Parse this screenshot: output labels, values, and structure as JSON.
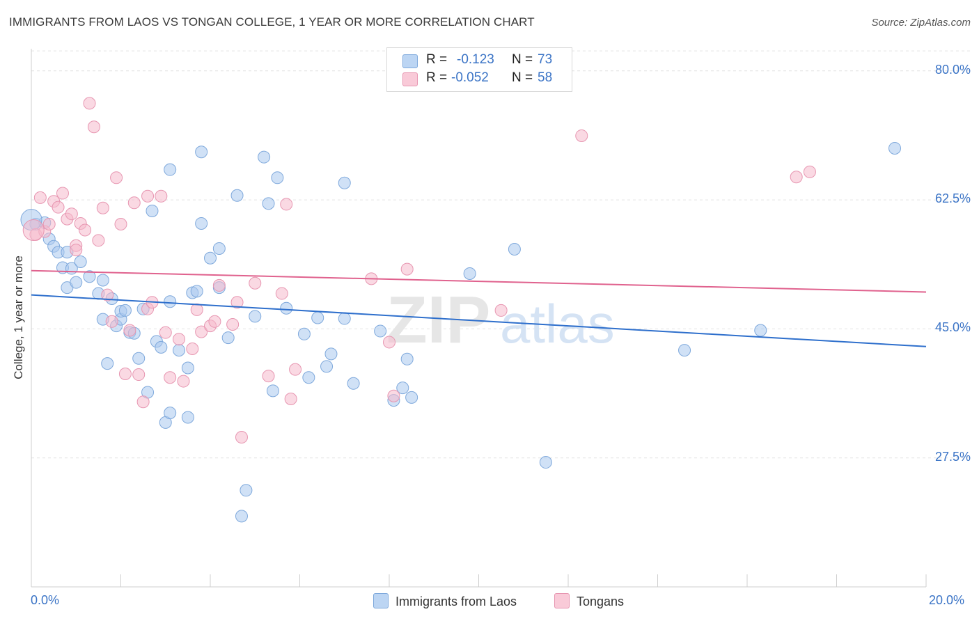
{
  "header": {
    "title": "IMMIGRANTS FROM LAOS VS TONGAN COLLEGE, 1 YEAR OR MORE CORRELATION CHART",
    "source": "Source: ZipAtlas.com"
  },
  "legend": {
    "r_label": "R =",
    "n_label": "N =",
    "rows": [
      {
        "r": "-0.123",
        "n": "73",
        "color": "#a9c8ef"
      },
      {
        "r": "-0.052",
        "n": "58",
        "color": "#f5b9cc"
      }
    ]
  },
  "bottom_legend": [
    "Immigrants from Laos",
    "Tongans"
  ],
  "watermark": {
    "zip": "ZIP",
    "atlas": "atlas"
  },
  "chart_data": {
    "type": "scatter",
    "xlabel": "",
    "ylabel": "College, 1 year or more",
    "xlim": [
      0,
      20
    ],
    "ylim": [
      10,
      83
    ],
    "x_ticks": [
      "0.0%",
      "20.0%"
    ],
    "y_ticks": [
      "80.0%",
      "62.5%",
      "45.0%",
      "27.5%"
    ],
    "y_tick_values": [
      80,
      62.5,
      45,
      27.5
    ],
    "grid": true,
    "legend_placement": "top-center",
    "series": [
      {
        "name": "Immigrants from Laos",
        "color": "#a9c8ef",
        "stroke": "#7fa9dc",
        "trend": {
          "x": [
            0,
            20
          ],
          "y": [
            49.6,
            42.6
          ],
          "color": "#2e6fcc"
        },
        "points": [
          [
            0.1,
            59.2
          ],
          [
            0.3,
            59.4
          ],
          [
            0.4,
            57.2
          ],
          [
            0.5,
            56.2
          ],
          [
            0.6,
            55.4
          ],
          [
            0.7,
            53.3
          ],
          [
            0.8,
            50.6
          ],
          [
            0.8,
            55.4
          ],
          [
            0.9,
            53.2
          ],
          [
            1.0,
            51.3
          ],
          [
            1.1,
            54.1
          ],
          [
            1.3,
            52.1
          ],
          [
            1.5,
            49.8
          ],
          [
            1.6,
            51.6
          ],
          [
            1.6,
            46.3
          ],
          [
            1.7,
            40.3
          ],
          [
            1.8,
            49.1
          ],
          [
            1.9,
            45.4
          ],
          [
            2.0,
            46.3
          ],
          [
            2.0,
            47.4
          ],
          [
            2.1,
            47.5
          ],
          [
            2.2,
            44.5
          ],
          [
            2.3,
            44.4
          ],
          [
            2.4,
            41.0
          ],
          [
            2.5,
            47.7
          ],
          [
            2.6,
            36.4
          ],
          [
            2.7,
            61.0
          ],
          [
            2.8,
            43.3
          ],
          [
            2.9,
            42.5
          ],
          [
            3.0,
            32.3
          ],
          [
            3.1,
            33.6
          ],
          [
            3.1,
            48.7
          ],
          [
            3.1,
            66.6
          ],
          [
            3.3,
            42.1
          ],
          [
            3.5,
            39.7
          ],
          [
            3.5,
            33.0
          ],
          [
            3.6,
            49.9
          ],
          [
            3.7,
            50.1
          ],
          [
            3.8,
            69.0
          ],
          [
            3.8,
            59.3
          ],
          [
            4.0,
            54.6
          ],
          [
            4.2,
            55.9
          ],
          [
            4.2,
            50.6
          ],
          [
            4.4,
            43.8
          ],
          [
            4.6,
            63.1
          ],
          [
            4.7,
            19.6
          ],
          [
            4.8,
            23.1
          ],
          [
            5.0,
            46.7
          ],
          [
            5.2,
            68.3
          ],
          [
            5.3,
            62.0
          ],
          [
            5.4,
            36.6
          ],
          [
            5.5,
            65.5
          ],
          [
            5.7,
            47.8
          ],
          [
            6.1,
            44.3
          ],
          [
            6.2,
            38.4
          ],
          [
            6.4,
            46.5
          ],
          [
            6.6,
            39.9
          ],
          [
            6.7,
            41.6
          ],
          [
            7.0,
            64.8
          ],
          [
            7.0,
            46.4
          ],
          [
            7.2,
            37.6
          ],
          [
            7.8,
            44.7
          ],
          [
            8.1,
            35.3
          ],
          [
            8.3,
            37.0
          ],
          [
            8.4,
            40.9
          ],
          [
            8.5,
            35.7
          ],
          [
            9.8,
            52.5
          ],
          [
            10.8,
            55.8
          ],
          [
            11.5,
            26.9
          ],
          [
            14.6,
            42.1
          ],
          [
            16.3,
            44.8
          ],
          [
            19.3,
            69.5
          ],
          [
            0.0,
            59.8
          ]
        ]
      },
      {
        "name": "Tongans",
        "color": "#f5b9cc",
        "stroke": "#e796b1",
        "trend": {
          "x": [
            0,
            20
          ],
          "y": [
            52.9,
            50.0
          ],
          "color": "#e0628e"
        },
        "points": [
          [
            0.1,
            57.8
          ],
          [
            0.2,
            62.8
          ],
          [
            0.3,
            58.2
          ],
          [
            0.4,
            59.2
          ],
          [
            0.5,
            62.3
          ],
          [
            0.6,
            61.5
          ],
          [
            0.7,
            63.4
          ],
          [
            0.8,
            59.9
          ],
          [
            0.9,
            60.6
          ],
          [
            1.0,
            56.3
          ],
          [
            1.0,
            55.7
          ],
          [
            1.1,
            59.3
          ],
          [
            1.2,
            58.4
          ],
          [
            1.3,
            75.6
          ],
          [
            1.4,
            72.4
          ],
          [
            1.5,
            57.0
          ],
          [
            1.6,
            61.4
          ],
          [
            1.7,
            49.6
          ],
          [
            1.8,
            46.0
          ],
          [
            1.9,
            65.5
          ],
          [
            2.0,
            59.2
          ],
          [
            2.1,
            38.9
          ],
          [
            2.2,
            44.8
          ],
          [
            2.3,
            62.1
          ],
          [
            2.4,
            38.8
          ],
          [
            2.5,
            35.1
          ],
          [
            2.6,
            47.7
          ],
          [
            2.6,
            63.0
          ],
          [
            2.7,
            48.6
          ],
          [
            2.9,
            63.0
          ],
          [
            3.0,
            44.5
          ],
          [
            3.1,
            38.4
          ],
          [
            3.3,
            43.6
          ],
          [
            3.4,
            37.9
          ],
          [
            3.6,
            42.3
          ],
          [
            3.7,
            47.6
          ],
          [
            3.8,
            44.6
          ],
          [
            4.0,
            45.4
          ],
          [
            4.1,
            46.0
          ],
          [
            4.2,
            50.9
          ],
          [
            4.5,
            45.6
          ],
          [
            4.6,
            48.6
          ],
          [
            4.7,
            30.3
          ],
          [
            5.0,
            51.2
          ],
          [
            5.3,
            38.6
          ],
          [
            5.6,
            49.8
          ],
          [
            5.7,
            61.9
          ],
          [
            5.8,
            35.5
          ],
          [
            5.9,
            39.5
          ],
          [
            7.6,
            51.8
          ],
          [
            8.0,
            43.2
          ],
          [
            8.1,
            35.9
          ],
          [
            8.4,
            53.1
          ],
          [
            10.5,
            47.5
          ],
          [
            12.3,
            71.2
          ],
          [
            17.1,
            65.6
          ],
          [
            17.4,
            66.3
          ],
          [
            0.05,
            58.4
          ]
        ]
      }
    ]
  }
}
